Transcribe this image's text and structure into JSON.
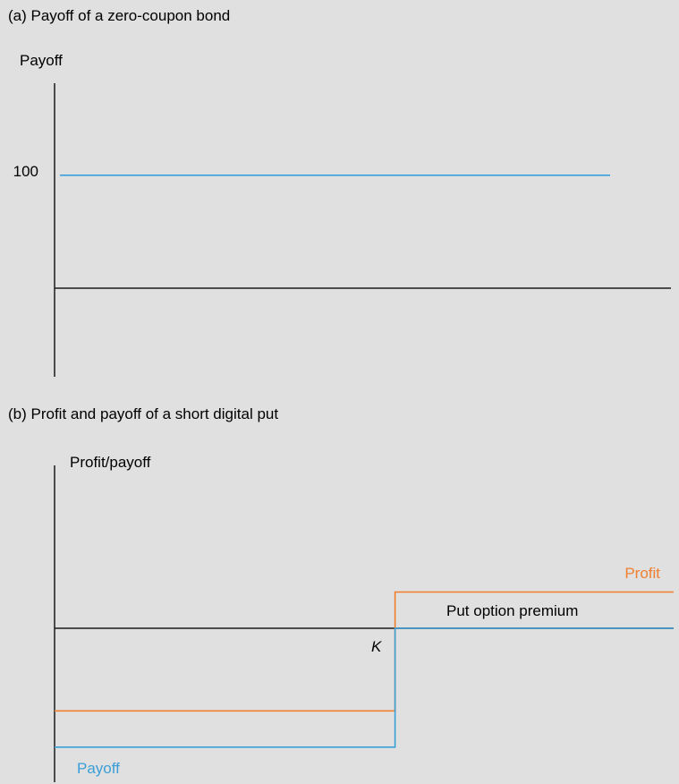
{
  "colors": {
    "background": "#e0e0e0",
    "axis": "#1a1a1a",
    "payoff": "#3a9fd8",
    "profit": "#f07f2f"
  },
  "chart_data": [
    {
      "type": "line",
      "title": "(a) Payoff of a zero-coupon bond",
      "ylabel": "Payoff",
      "xlabel": "",
      "y_tick_labels": [
        "100"
      ],
      "ylim": [
        -75,
        185
      ],
      "series": [
        {
          "values": [
            [
              0,
              100
            ],
            [
              1,
              100
            ]
          ],
          "color": "#3a9fd8"
        }
      ],
      "grid": false
    },
    {
      "type": "line",
      "title": "(b) Profit and payoff of a short digital put",
      "ylabel": "Profit/payoff",
      "xlabel": "",
      "x_tick_labels": [
        "K"
      ],
      "annotations": [
        "Put option premium"
      ],
      "ylim": [
        -135,
        145
      ],
      "series": [
        {
          "name": "Profit",
          "color": "#f07f2f",
          "values": [
            [
              0,
              -73
            ],
            [
              0.55,
              -73
            ],
            [
              0.55,
              32
            ],
            [
              1,
              32
            ]
          ]
        },
        {
          "name": "Payoff",
          "color": "#3a9fd8",
          "values": [
            [
              0,
              -105
            ],
            [
              0.55,
              -105
            ],
            [
              0.55,
              0
            ],
            [
              1,
              0
            ]
          ]
        }
      ],
      "grid": false
    }
  ]
}
